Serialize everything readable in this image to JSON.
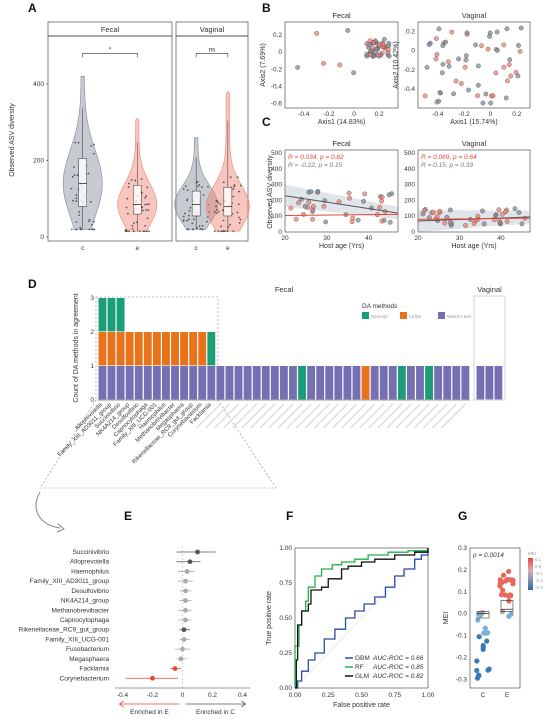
{
  "colors": {
    "c": "#7f8c99",
    "e": "#f08070",
    "deseq2": "#1a9e77",
    "lefse": "#e8731a",
    "welch": "#7570b3",
    "e_red": "#e8463a",
    "c_gray": "#555555"
  },
  "panelA": {
    "letter": "A",
    "ylabel": "Observed ASV diversity",
    "facets": [
      "Fecal",
      "Vaginal"
    ],
    "xcats": [
      "c",
      "e"
    ],
    "yticks": [
      0,
      200,
      400
    ],
    "ylim": [
      0,
      520
    ],
    "sig": [
      "*",
      "ns"
    ],
    "boxes": [
      {
        "facet": 0,
        "g": "c",
        "q1": 80,
        "med": 140,
        "q3": 205,
        "lo": 20,
        "hi": 420
      },
      {
        "facet": 0,
        "g": "e",
        "q1": 60,
        "med": 85,
        "q3": 135,
        "lo": 15,
        "hi": 310
      },
      {
        "facet": 1,
        "g": "c",
        "q1": 55,
        "med": 85,
        "q3": 120,
        "lo": 20,
        "hi": 260
      },
      {
        "facet": 1,
        "g": "e",
        "q1": 55,
        "med": 80,
        "q3": 130,
        "lo": 15,
        "hi": 380
      }
    ]
  },
  "panelB": {
    "letter": "B",
    "facets": [
      {
        "title": "Fecal",
        "xlabel": "Axis1 (14.83%)",
        "ylabel": "Axis2 (7.69%)",
        "xticks": [
          -0.4,
          -0.2,
          0,
          0.2
        ],
        "yticks": [
          0.2,
          0,
          -0.2,
          -0.4,
          -0.6
        ],
        "xlim": [
          -0.55,
          0.35
        ],
        "ylim": [
          -0.65,
          0.35
        ]
      },
      {
        "title": "Vaginal",
        "xlabel": "Axis1 (15.74%)",
        "ylabel": "Axis2 (10.42%)",
        "xticks": [
          -0.4,
          -0.2,
          0,
          0.2
        ],
        "yticks": [
          0.2,
          0,
          -0.2,
          -0.4
        ],
        "xlim": [
          -0.55,
          0.3
        ],
        "ylim": [
          -0.6,
          0.3
        ]
      }
    ]
  },
  "panelC": {
    "letter": "C",
    "ylabel": "Observed ASV diversity",
    "xlabel": "Host age (Yrs)",
    "facets": [
      {
        "title": "Fecal",
        "ann_e": "R = 0.034, p = 0.82",
        "ann_c": "R = -0.22, p = 0.15",
        "xticks": [
          20,
          30,
          40
        ],
        "yticks": [
          0,
          100,
          200,
          300,
          400,
          500
        ],
        "xlim": [
          20,
          47
        ],
        "ylim": [
          0,
          520
        ],
        "line_c": [
          [
            20,
            230
          ],
          [
            47,
            120
          ]
        ],
        "line_e": [
          [
            20,
            105
          ],
          [
            47,
            112
          ]
        ]
      },
      {
        "title": "Vaginal",
        "ann_e": "R = 0.069, p = 0.64",
        "ann_c": "R = 0.15, p = 0.39",
        "xticks": [
          20,
          30,
          40
        ],
        "yticks": [
          0,
          100,
          200,
          300,
          400,
          500
        ],
        "xlim": [
          20,
          47
        ],
        "ylim": [
          0,
          520
        ],
        "line_c": [
          [
            20,
            70
          ],
          [
            47,
            95
          ]
        ],
        "line_e": [
          [
            20,
            80
          ],
          [
            47,
            88
          ]
        ]
      }
    ]
  },
  "panelD": {
    "letter": "D",
    "ylabel": "Count of DA methods in agreement",
    "yticks": [
      0,
      1,
      2,
      3
    ],
    "facets": [
      "Fecal",
      "Vaginal"
    ],
    "legend_title": "DA methods",
    "legend": [
      "DESeq2",
      "LEfSe",
      "Welch's test"
    ],
    "highlight_taxa": [
      "Alloprevotella",
      "Family_XIII_AD3011_group",
      "Succinivibrio",
      "NK4A214_group",
      "Desulfovibrio",
      "Capnocytophaga",
      "Family_XIII_UCG-001",
      "Haemophilus",
      "Methanobrevibacter",
      "Megasphaera",
      "Rikenellaceae_RC9_gut_group",
      "Corynebacterium",
      "Facklamia"
    ],
    "bars_fecal": [
      [
        1,
        1,
        1
      ],
      [
        1,
        1,
        1
      ],
      [
        1,
        1,
        1
      ],
      [
        1,
        1,
        0
      ],
      [
        1,
        1,
        0
      ],
      [
        1,
        1,
        0
      ],
      [
        1,
        1,
        0
      ],
      [
        1,
        1,
        0
      ],
      [
        1,
        1,
        0
      ],
      [
        1,
        1,
        0
      ],
      [
        1,
        1,
        0
      ],
      [
        1,
        1,
        0
      ],
      [
        1,
        0,
        1
      ],
      [
        1,
        0,
        0
      ],
      [
        1,
        0,
        0
      ],
      [
        1,
        0,
        0
      ],
      [
        1,
        0,
        0
      ],
      [
        1,
        0,
        0
      ],
      [
        1,
        0,
        0
      ],
      [
        1,
        0,
        0
      ],
      [
        1,
        0,
        0
      ],
      [
        1,
        0,
        0
      ],
      [
        0,
        0,
        1
      ],
      [
        1,
        0,
        0
      ],
      [
        1,
        0,
        0
      ],
      [
        1,
        0,
        0
      ],
      [
        1,
        0,
        0
      ],
      [
        1,
        0,
        0
      ],
      [
        1,
        0,
        0
      ],
      [
        0,
        1,
        0
      ],
      [
        1,
        0,
        0
      ],
      [
        1,
        0,
        0
      ],
      [
        1,
        0,
        0
      ],
      [
        0,
        0,
        1
      ],
      [
        1,
        0,
        0
      ],
      [
        1,
        0,
        0
      ],
      [
        0,
        0,
        1
      ],
      [
        1,
        0,
        0
      ],
      [
        1,
        0,
        0
      ],
      [
        1,
        0,
        0
      ],
      [
        1,
        0,
        0
      ]
    ],
    "bars_vaginal": [
      [
        1,
        0,
        0
      ],
      [
        1,
        0,
        0
      ],
      [
        1,
        0,
        0
      ]
    ]
  },
  "panelE": {
    "letter": "E",
    "xticks": [
      -0.4,
      -0.2,
      0,
      0.2,
      0.4
    ],
    "xlim": [
      -0.45,
      0.45
    ],
    "enriched_e": "Enriched in E",
    "enriched_c": "Enriched in C",
    "taxa": [
      "Succinivibrio",
      "Alloprevotella",
      "Haemophilus",
      "Family_XIII_AD3011_group",
      "Desulfovibrio",
      "NK4A214_group",
      "Methanobrevibacter",
      "Capnocytophaga",
      "Rikenellaceae_RC9_gut_group",
      "Family_XIII_UCG-001",
      "Fusobacterium",
      "Megasphaera",
      "Facklamia",
      "Corynebacterium"
    ],
    "estimates": [
      0.1,
      0.05,
      0.03,
      0.02,
      0.02,
      0.02,
      0.02,
      0.02,
      0.01,
      0.01,
      0.0,
      -0.01,
      -0.05,
      -0.2
    ],
    "lo": [
      -0.04,
      -0.04,
      -0.03,
      -0.03,
      -0.02,
      -0.02,
      -0.03,
      -0.03,
      -0.02,
      -0.02,
      -0.05,
      -0.04,
      -0.08,
      -0.38
    ],
    "hi": [
      0.22,
      0.12,
      0.08,
      0.07,
      0.06,
      0.06,
      0.06,
      0.06,
      0.05,
      0.05,
      0.05,
      0.03,
      -0.01,
      -0.03
    ],
    "point_colors": [
      "#555",
      "#555",
      "#aaa",
      "#aaa",
      "#aaa",
      "#aaa",
      "#aaa",
      "#aaa",
      "#555",
      "#aaa",
      "#aaa",
      "#aaa",
      "#e8463a",
      "#e8463a"
    ]
  },
  "panelF": {
    "letter": "F",
    "xlabel": "False positive rate",
    "ylabel": "True positive rate",
    "xticks": [
      0,
      0.25,
      0.5,
      0.75,
      1
    ],
    "yticks": [
      0,
      0.25,
      0.5,
      0.75,
      1
    ],
    "xticklabels": [
      "0.00",
      "0.25",
      "0.50",
      "0.75",
      "1.00"
    ],
    "yticklabels": [
      "0.00",
      "0.25",
      "0.50",
      "0.75",
      "1.00"
    ],
    "models": [
      {
        "name": "GBM",
        "auc": "AUC-ROC = 0.66",
        "color": "#2b4d9e",
        "pts": [
          [
            0,
            0
          ],
          [
            0.02,
            0.05
          ],
          [
            0.05,
            0.12
          ],
          [
            0.1,
            0.2
          ],
          [
            0.15,
            0.25
          ],
          [
            0.22,
            0.35
          ],
          [
            0.3,
            0.42
          ],
          [
            0.38,
            0.5
          ],
          [
            0.45,
            0.55
          ],
          [
            0.52,
            0.6
          ],
          [
            0.6,
            0.65
          ],
          [
            0.68,
            0.72
          ],
          [
            0.75,
            0.8
          ],
          [
            0.82,
            0.85
          ],
          [
            0.9,
            0.92
          ],
          [
            0.95,
            0.95
          ],
          [
            1,
            1
          ]
        ]
      },
      {
        "name": "RF",
        "auc": "AUC-ROC = 0.85",
        "color": "#22b04a",
        "pts": [
          [
            0,
            0
          ],
          [
            0,
            0.3
          ],
          [
            0.03,
            0.45
          ],
          [
            0.05,
            0.55
          ],
          [
            0.08,
            0.62
          ],
          [
            0.1,
            0.72
          ],
          [
            0.15,
            0.8
          ],
          [
            0.2,
            0.85
          ],
          [
            0.28,
            0.88
          ],
          [
            0.35,
            0.9
          ],
          [
            0.45,
            0.92
          ],
          [
            0.55,
            0.95
          ],
          [
            0.7,
            0.97
          ],
          [
            0.85,
            0.98
          ],
          [
            1,
            1
          ]
        ]
      },
      {
        "name": "GLM",
        "auc": "AUC-ROC = 0.82",
        "color": "#111111",
        "pts": [
          [
            0,
            0
          ],
          [
            0.01,
            0.2
          ],
          [
            0.02,
            0.45
          ],
          [
            0.05,
            0.55
          ],
          [
            0.1,
            0.6
          ],
          [
            0.12,
            0.7
          ],
          [
            0.2,
            0.72
          ],
          [
            0.25,
            0.78
          ],
          [
            0.3,
            0.78
          ],
          [
            0.35,
            0.85
          ],
          [
            0.4,
            0.87
          ],
          [
            0.5,
            0.9
          ],
          [
            0.6,
            0.92
          ],
          [
            0.75,
            0.95
          ],
          [
            0.9,
            0.97
          ],
          [
            1,
            1
          ]
        ]
      }
    ]
  },
  "panelG": {
    "letter": "G",
    "ylabel": "MEI",
    "xcats": [
      "C",
      "E"
    ],
    "pval": "p = 0.0014",
    "yticks": [
      -0.3,
      -0.2,
      -0.1,
      0.0,
      0.1,
      0.2,
      0.3
    ],
    "ylim": [
      -0.34,
      0.3
    ],
    "legend_title": "MEI",
    "legend_ticks": [
      "0.1",
      "0.0",
      "-0.1",
      "-0.2",
      "-0.3"
    ],
    "boxes": [
      {
        "g": "C",
        "q1": -0.02,
        "med": 0.0,
        "q3": 0.01
      },
      {
        "g": "E",
        "q1": 0.01,
        "med": 0.02,
        "q3": 0.06
      }
    ]
  }
}
